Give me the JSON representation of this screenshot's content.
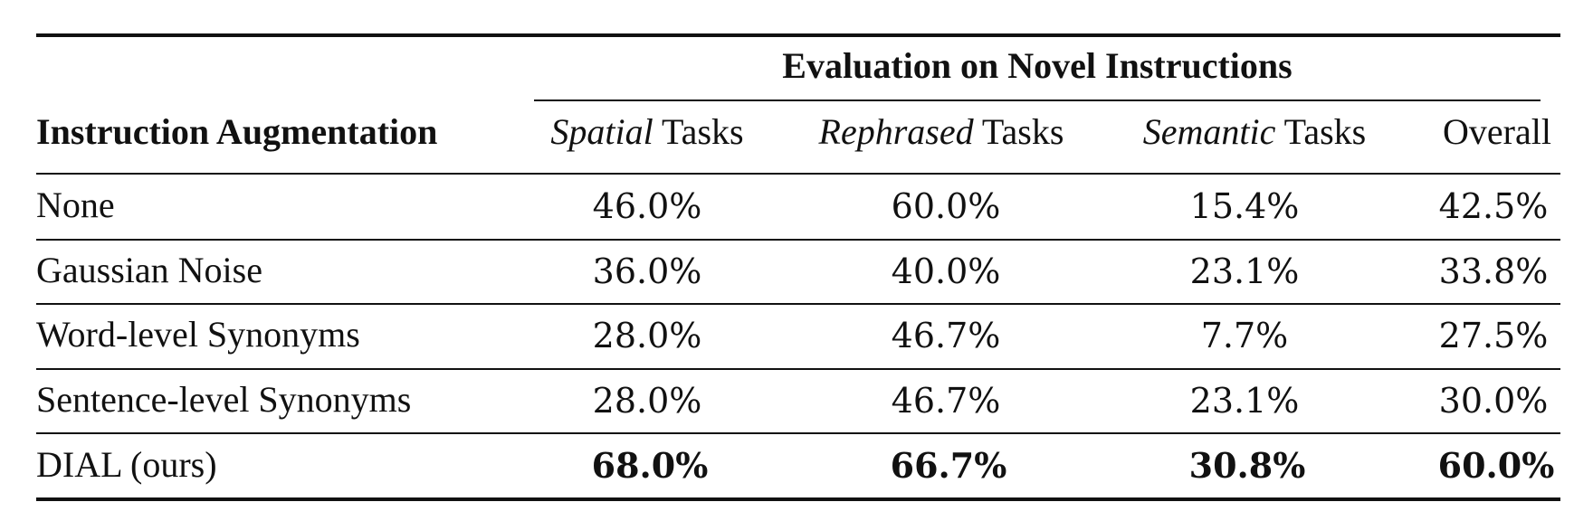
{
  "table": {
    "group_header": "Evaluation on Novel Instructions",
    "row_header": "Instruction Augmentation",
    "columns": [
      {
        "emph": "Spatial",
        "rest": " Tasks"
      },
      {
        "emph": "Rephrased",
        "rest": " Tasks"
      },
      {
        "emph": "Semantic",
        "rest": " Tasks"
      },
      {
        "emph": "",
        "rest": "Overall"
      }
    ],
    "rows": [
      {
        "label": "None",
        "values": [
          "46.0%",
          "60.0%",
          "15.4%",
          "42.5%"
        ],
        "bold": false
      },
      {
        "label": "Gaussian Noise",
        "values": [
          "36.0%",
          "40.0%",
          "23.1%",
          "33.8%"
        ],
        "bold": false
      },
      {
        "label": "Word-level Synonyms",
        "values": [
          "28.0%",
          "46.7%",
          "7.7%",
          "27.5%"
        ],
        "bold": false
      },
      {
        "label": "Sentence-level Synonyms",
        "values": [
          "28.0%",
          "46.7%",
          "23.1%",
          "30.0%"
        ],
        "bold": false
      },
      {
        "label": "DIAL (ours)",
        "values": [
          "68.0%",
          "66.7%",
          "30.8%",
          "60.0%"
        ],
        "bold": true
      }
    ]
  }
}
